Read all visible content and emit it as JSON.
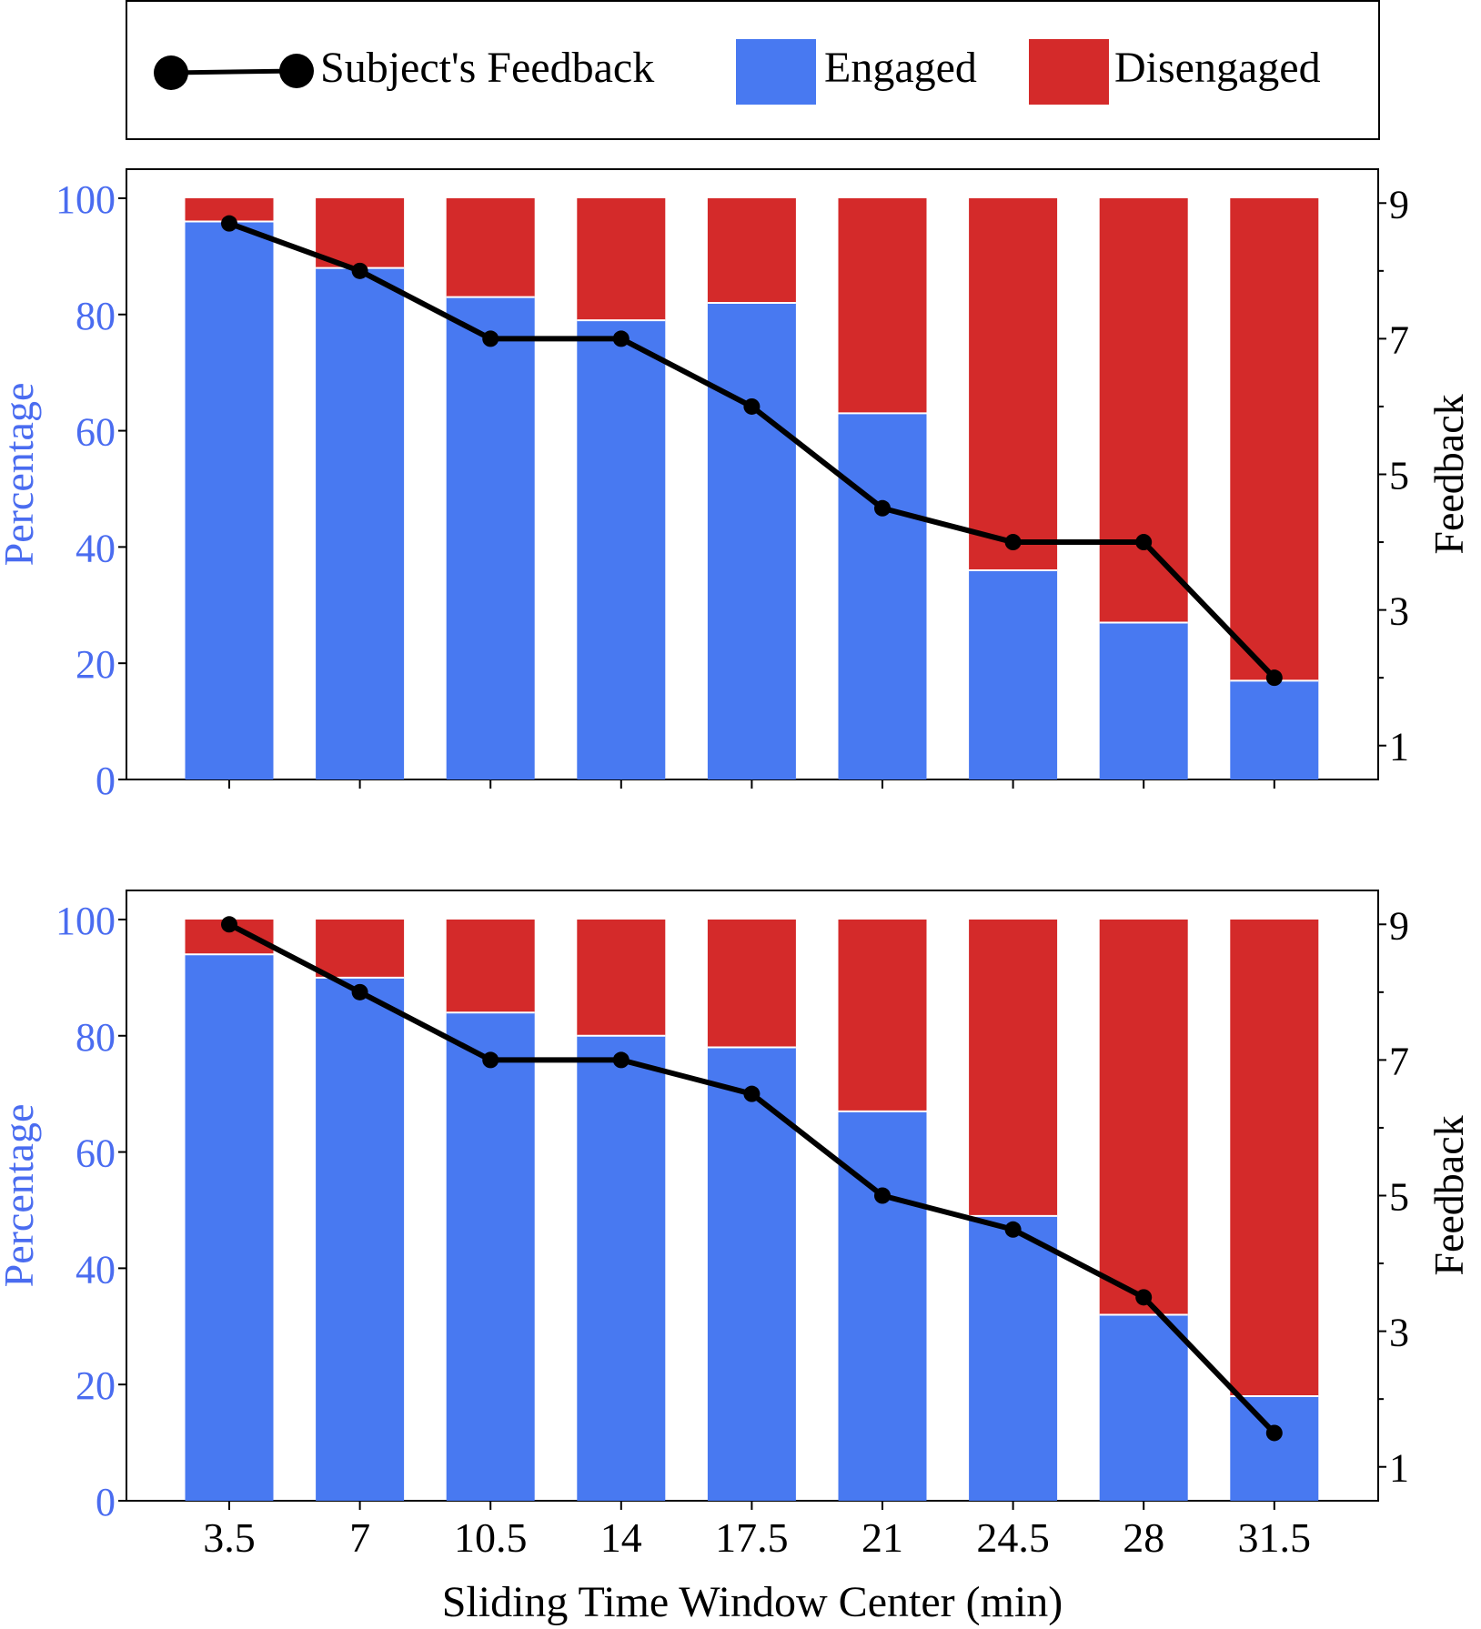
{
  "colors": {
    "engaged": "#4879f1",
    "disengaged": "#d42a2a",
    "feedback": "#000000",
    "left_axis_text": "#4a6cf0",
    "right_axis_text": "#000000"
  },
  "legend": {
    "feedback_label": "Subject's Feedback",
    "engaged_label": "Engaged",
    "disengaged_label": "Disengaged"
  },
  "xlabel": "Sliding Time Window Center (min)",
  "chart_data": [
    {
      "type": "bar",
      "stacked": true,
      "categories": [
        "3.5",
        "7",
        "10.5",
        "14",
        "17.5",
        "21",
        "24.5",
        "28",
        "31.5"
      ],
      "series": [
        {
          "name": "Engaged",
          "values": [
            96,
            88,
            83,
            79,
            82,
            63,
            36,
            27,
            17
          ]
        },
        {
          "name": "Disengaged",
          "values": [
            4,
            12,
            17,
            21,
            18,
            37,
            64,
            73,
            83
          ]
        }
      ],
      "line_series": {
        "name": "Subject's Feedback",
        "axis": "right",
        "values": [
          8.7,
          8,
          7,
          7,
          6,
          4.5,
          4,
          4,
          2
        ]
      },
      "ylabel": "Percentage",
      "ylim": [
        0,
        105
      ],
      "yticks": [
        0,
        20,
        40,
        60,
        80,
        100
      ],
      "y2label": "Feedback",
      "y2lim": [
        0.5,
        9.5
      ],
      "y2ticks_labeled": [
        1,
        3,
        5,
        7,
        9
      ],
      "y2ticks_minor": [
        2,
        4,
        6,
        8
      ],
      "show_x_ticklabels": false
    },
    {
      "type": "bar",
      "stacked": true,
      "categories": [
        "3.5",
        "7",
        "10.5",
        "14",
        "17.5",
        "21",
        "24.5",
        "28",
        "31.5"
      ],
      "series": [
        {
          "name": "Engaged",
          "values": [
            94,
            90,
            84,
            80,
            78,
            67,
            49,
            32,
            18
          ]
        },
        {
          "name": "Disengaged",
          "values": [
            6,
            10,
            16,
            20,
            22,
            33,
            51,
            68,
            82
          ]
        }
      ],
      "line_series": {
        "name": "Subject's Feedback",
        "axis": "right",
        "values": [
          9,
          8,
          7,
          7,
          6.5,
          5,
          4.5,
          3.5,
          1.5
        ]
      },
      "ylabel": "Percentage",
      "ylim": [
        0,
        105
      ],
      "yticks": [
        0,
        20,
        40,
        60,
        80,
        100
      ],
      "y2label": "Feedback",
      "y2lim": [
        0.5,
        9.5
      ],
      "y2ticks_labeled": [
        1,
        3,
        5,
        7,
        9
      ],
      "y2ticks_minor": [
        2,
        4,
        6,
        8
      ],
      "show_x_ticklabels": true
    }
  ]
}
